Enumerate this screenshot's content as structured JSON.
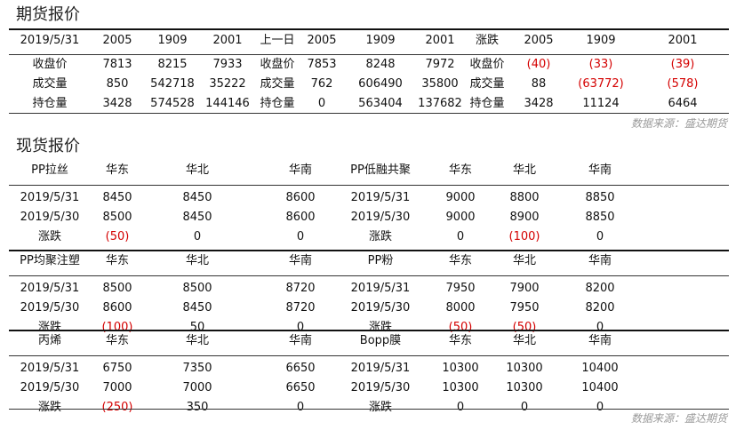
{
  "futures": {
    "title": "期货报价",
    "header": [
      "2019/5/31",
      "2005",
      "1909",
      "2001",
      "上一日",
      "2005",
      "1909",
      "2001",
      "涨跌",
      "2005",
      "1909",
      "2001"
    ],
    "rows": [
      [
        "收盘价",
        "7813",
        "8215",
        "7933",
        "收盘价",
        "7853",
        "8248",
        "7972",
        "收盘价",
        "(40)",
        "(33)",
        "(39)"
      ],
      [
        "成交量",
        "850",
        "542718",
        "35222",
        "成交量",
        "762",
        "606490",
        "35800",
        "成交量",
        "88",
        "(63772)",
        "(578)"
      ],
      [
        "持仓量",
        "3428",
        "574528",
        "144146",
        "持仓量",
        "0",
        "563404",
        "137682",
        "持仓量",
        "3428",
        "11124",
        "6464"
      ]
    ],
    "source": "数据来源：盛达期货"
  },
  "spot": {
    "title": "现货报价",
    "blocks": [
      {
        "header": [
          "PP拉丝",
          "华东",
          "华北",
          "华南",
          "PP低融共聚",
          "华东",
          "华北",
          "华南"
        ],
        "rows": [
          [
            "2019/5/31",
            "8450",
            "8450",
            "8600",
            "2019/5/31",
            "9000",
            "8800",
            "8850"
          ],
          [
            "2019/5/30",
            "8500",
            "8450",
            "8600",
            "2019/5/30",
            "9000",
            "8900",
            "8850"
          ],
          [
            "涨跌",
            "(50)",
            "0",
            "0",
            "涨跌",
            "0",
            "(100)",
            "0"
          ]
        ]
      },
      {
        "header": [
          "PP均聚注塑",
          "华东",
          "华北",
          "华南",
          "PP粉",
          "华东",
          "华北",
          "华南"
        ],
        "rows": [
          [
            "2019/5/31",
            "8500",
            "8500",
            "8720",
            "2019/5/31",
            "7950",
            "7900",
            "8200"
          ],
          [
            "2019/5/30",
            "8600",
            "8450",
            "8720",
            "2019/5/30",
            "8000",
            "7950",
            "8200"
          ],
          [
            "涨跌",
            "(100)",
            "50",
            "0",
            "涨跌",
            "(50)",
            "(50)",
            "0"
          ]
        ]
      },
      {
        "header": [
          "丙烯",
          "华东",
          "华北",
          "华南",
          "Bopp膜",
          "华东",
          "华北",
          "华南"
        ],
        "rows": [
          [
            "2019/5/31",
            "6750",
            "7350",
            "6650",
            "2019/5/31",
            "10300",
            "10300",
            "10400"
          ],
          [
            "2019/5/30",
            "7000",
            "7000",
            "6650",
            "2019/5/30",
            "10300",
            "10300",
            "10400"
          ],
          [
            "涨跌",
            "(250)",
            "350",
            "0",
            "涨跌",
            "0",
            "0",
            "0"
          ]
        ]
      }
    ],
    "source": "数据来源：盛达期货"
  },
  "colors": {
    "negative": "#d40000",
    "source_text": "#9a9a9a"
  }
}
